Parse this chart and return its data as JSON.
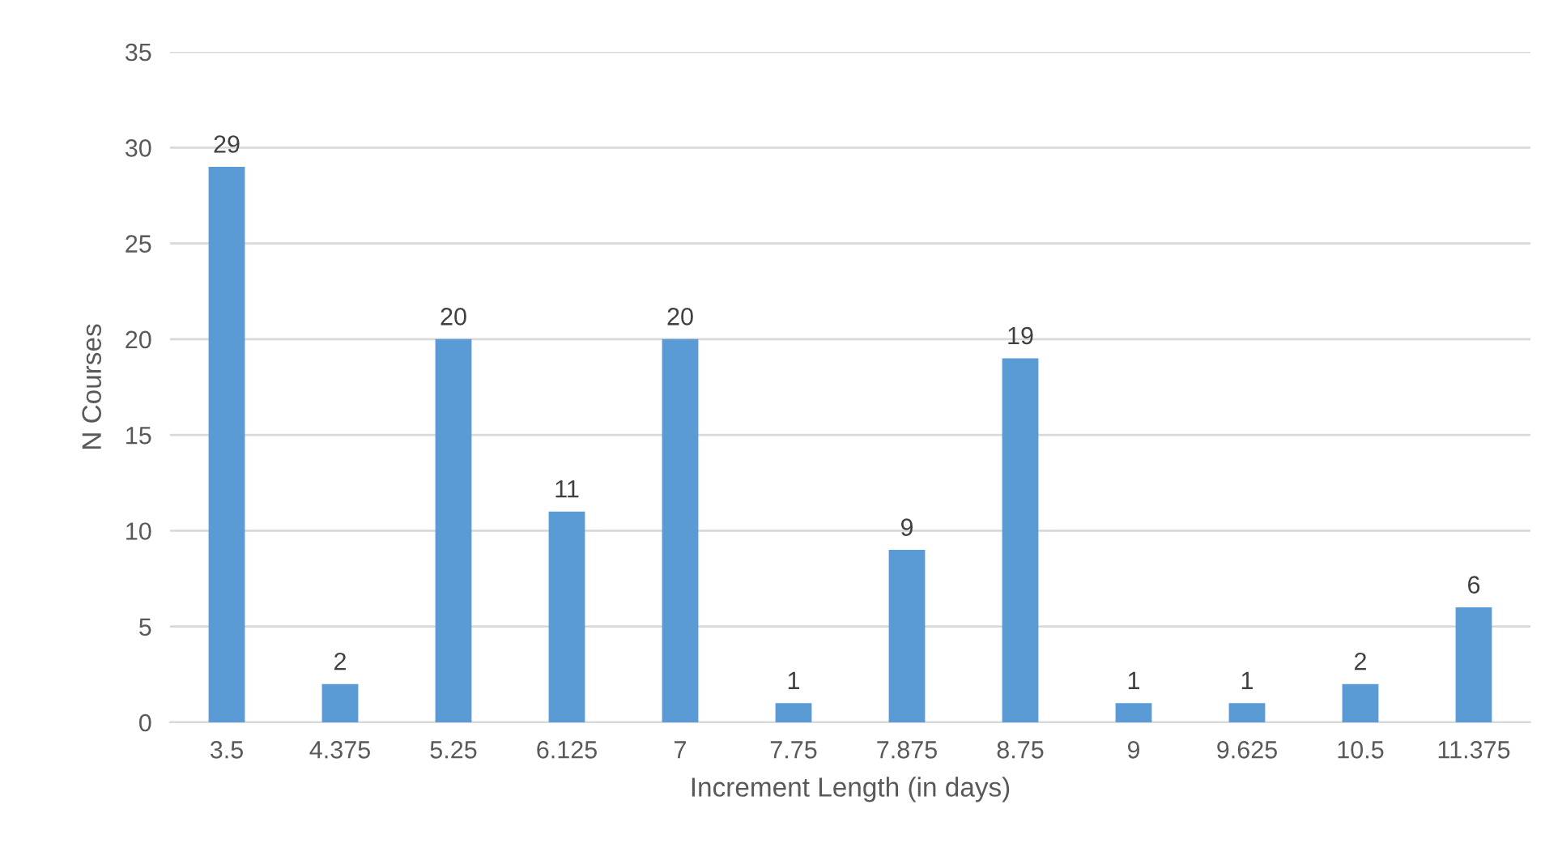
{
  "chart_data": {
    "type": "bar",
    "xlabel": "Increment Length (in days)",
    "ylabel": "N Courses",
    "categories": [
      "3.5",
      "4.375",
      "5.25",
      "6.125",
      "7",
      "7.75",
      "7.875",
      "8.75",
      "9",
      "9.625",
      "10.5",
      "11.375"
    ],
    "values": [
      29,
      2,
      20,
      11,
      20,
      1,
      9,
      19,
      1,
      1,
      2,
      6
    ],
    "color": "#5b9bd5",
    "ylim": [
      0,
      35
    ],
    "yticks": [
      0,
      5,
      10,
      15,
      20,
      25,
      30,
      35
    ],
    "grid": "y",
    "data_labels": true
  }
}
